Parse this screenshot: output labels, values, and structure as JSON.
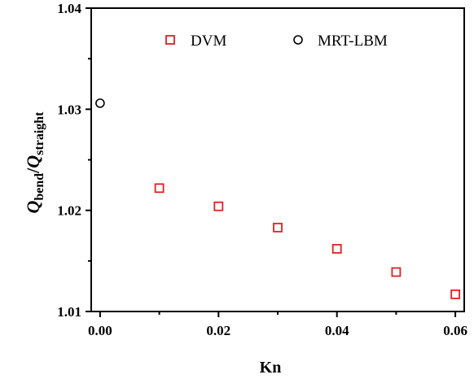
{
  "chart_data": {
    "type": "scatter",
    "xlabel": "Kn",
    "ylabel": {
      "main_1": "Q",
      "sub_1": "bend",
      "slash": "/",
      "main_2": "Q",
      "sub_2": "straight"
    },
    "xlim": [
      -0.0015,
      0.0615
    ],
    "ylim": [
      1.01,
      1.04
    ],
    "x_ticks": [
      "0.00",
      "0.02",
      "0.04",
      "0.06"
    ],
    "y_ticks": [
      "1.01",
      "1.02",
      "1.03",
      "1.04"
    ],
    "legend_position": "top",
    "series": [
      {
        "name": "DVM",
        "marker": "square",
        "color": "#e02020",
        "points": [
          {
            "x": 0.01,
            "y": 1.0222
          },
          {
            "x": 0.02,
            "y": 1.0204
          },
          {
            "x": 0.03,
            "y": 1.0183
          },
          {
            "x": 0.04,
            "y": 1.0162
          },
          {
            "x": 0.05,
            "y": 1.0139
          },
          {
            "x": 0.06,
            "y": 1.0117
          }
        ]
      },
      {
        "name": "MRT-LBM",
        "marker": "circle",
        "color": "#000000",
        "points": [
          {
            "x": 0.0,
            "y": 1.0306
          }
        ]
      }
    ]
  }
}
